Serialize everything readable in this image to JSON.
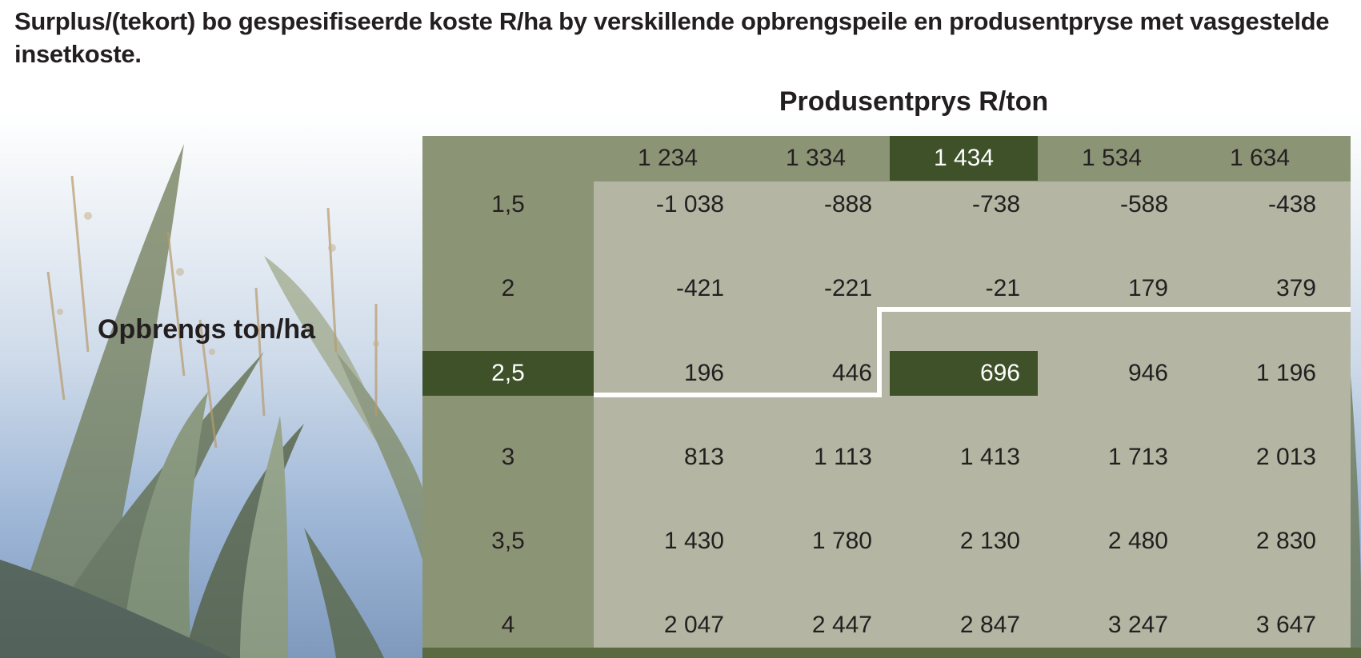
{
  "title": "Surplus/(tekort) bo gespesifiseerde koste R/ha by verskillende opbrengspeile en produsentpryse met vasgestelde insetkoste.",
  "price_header": "Produsentprys R/ton",
  "yield_label": "Opbrengs ton/ha",
  "prices": [
    "1 234",
    "1 334",
    "1 434",
    "1 534",
    "1 634"
  ],
  "yields": [
    "1,5",
    "2",
    "2,5",
    "3",
    "3,5",
    "4"
  ],
  "rows": [
    [
      "-1 038",
      "-888",
      "-738",
      "-588",
      "-438"
    ],
    [
      "-421",
      "-221",
      "-21",
      "179",
      "379"
    ],
    [
      "196",
      "446",
      "696",
      "946",
      "1 196"
    ],
    [
      "813",
      "1 113",
      "1 413",
      "1 713",
      "2 013"
    ],
    [
      "1 430",
      "1 780",
      "2 130",
      "2 480",
      "2 830"
    ],
    [
      "2 047",
      "2 447",
      "2 847",
      "3 247",
      "3 647"
    ]
  ],
  "highlight": {
    "price_index": 2,
    "yield_index": 2
  },
  "colors": {
    "header_bg": "#8c9476",
    "cell_bg": "#b4b5a2",
    "highlight_bg": "#3f5129",
    "text": "#231f20",
    "break_even_line": "#ffffff"
  }
}
